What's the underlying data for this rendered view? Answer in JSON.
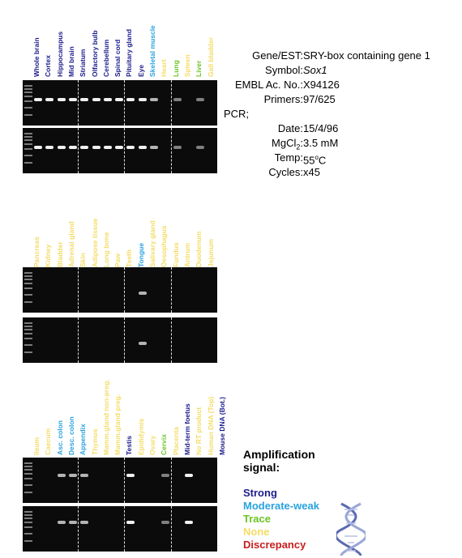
{
  "panels": [
    {
      "lanes": [
        {
          "label": "Whole brain",
          "level": "strong"
        },
        {
          "label": "Cortex",
          "level": "strong"
        },
        {
          "label": "Hippocampus",
          "level": "strong"
        },
        {
          "label": "Mid brain",
          "level": "strong"
        },
        {
          "label": "Striatum",
          "level": "strong"
        },
        {
          "label": "Olfactory bulb",
          "level": "strong"
        },
        {
          "label": "Cerebellum",
          "level": "strong"
        },
        {
          "label": "Spinal cord",
          "level": "strong"
        },
        {
          "label": "Pituitary gland",
          "level": "strong"
        },
        {
          "label": "Eye",
          "level": "strong"
        },
        {
          "label": "Skeletal muscle",
          "level": "moderate"
        },
        {
          "label": "Heart",
          "level": "none"
        },
        {
          "label": "Lung",
          "level": "trace"
        },
        {
          "label": "Spleen",
          "level": "none"
        },
        {
          "label": "Liver",
          "level": "trace"
        },
        {
          "label": "Gall bladder",
          "level": "none"
        }
      ]
    },
    {
      "lanes": [
        {
          "label": "Pancreas",
          "level": "none"
        },
        {
          "label": "Kidney",
          "level": "none"
        },
        {
          "label": "Bladder",
          "level": "none"
        },
        {
          "label": "Adrenal gland",
          "level": "none"
        },
        {
          "label": "Skin",
          "level": "none"
        },
        {
          "label": "Adipose tissue",
          "level": "none"
        },
        {
          "label": "Long bone",
          "level": "none"
        },
        {
          "label": "Paw",
          "level": "none"
        },
        {
          "label": "Teeth",
          "level": "none"
        },
        {
          "label": "Tongue",
          "level": "moderate"
        },
        {
          "label": "Salivary gland",
          "level": "none"
        },
        {
          "label": "Oesophagus",
          "level": "none"
        },
        {
          "label": "Fundus",
          "level": "none"
        },
        {
          "label": "Antrum",
          "level": "none"
        },
        {
          "label": "Duodenum",
          "level": "none"
        },
        {
          "label": "Jejunum",
          "level": "none"
        }
      ]
    },
    {
      "lanes": [
        {
          "label": "Ileum",
          "level": "none"
        },
        {
          "label": "Caecum",
          "level": "none"
        },
        {
          "label": "Asc. colon",
          "level": "moderate"
        },
        {
          "label": "Desc. colon",
          "level": "moderate"
        },
        {
          "label": "Appendix",
          "level": "moderate"
        },
        {
          "label": "Thymus",
          "level": "none"
        },
        {
          "label": "Mamm.gland non-preg.",
          "level": "none"
        },
        {
          "label": "Mamm.gland preg.",
          "level": "none"
        },
        {
          "label": "Testis",
          "level": "strong"
        },
        {
          "label": "Epididymis",
          "level": "none"
        },
        {
          "label": "Ovary",
          "level": "none"
        },
        {
          "label": "Cervix",
          "level": "trace"
        },
        {
          "label": "Placenta",
          "level": "none"
        },
        {
          "label": "Mid-term foetus",
          "level": "strong"
        },
        {
          "label": "No RT product",
          "level": "none"
        },
        {
          "label": "Human DNA (Top)",
          "level": "none"
        },
        {
          "label": "Mouse DNA (Bot.)",
          "level": "strong"
        }
      ]
    }
  ],
  "colors": {
    "strong": "#1c1c8c",
    "moderate": "#2aa3e0",
    "trace": "#6cc324",
    "none": "#f4dc66",
    "discrepancy": "#c81e1e"
  },
  "info": {
    "gene_label": "Gene/EST:",
    "gene_value": "SRY-box containing gene 1",
    "symbol_label": "Symbol:",
    "symbol_value": "Sox1",
    "embl_label": "EMBL Ac. No.:",
    "embl_value": "X94126",
    "primers_label": "Primers:",
    "primers_value": "97/625",
    "pcr_label": "PCR;",
    "date_label": "Date:",
    "date_value": "15/4/96",
    "mgcl_label_main": "MgCl",
    "mgcl_label_sub": "2",
    "mgcl_label_colon": ":",
    "mgcl_value": "3.5 mM",
    "temp_label": "Temp:",
    "temp_value_main": "55",
    "temp_value_sup": "o",
    "temp_value_unit": "C",
    "cycles_label": "Cycles:",
    "cycles_value": "x45"
  },
  "legend": {
    "title_line1": "Amplification",
    "title_line2": "signal:",
    "strong": "Strong",
    "moderate": "Moderate-weak",
    "trace": "Trace",
    "none": "None",
    "discrepancy": "Discrepancy"
  },
  "icons": {
    "dna": "dna-helix-icon"
  }
}
